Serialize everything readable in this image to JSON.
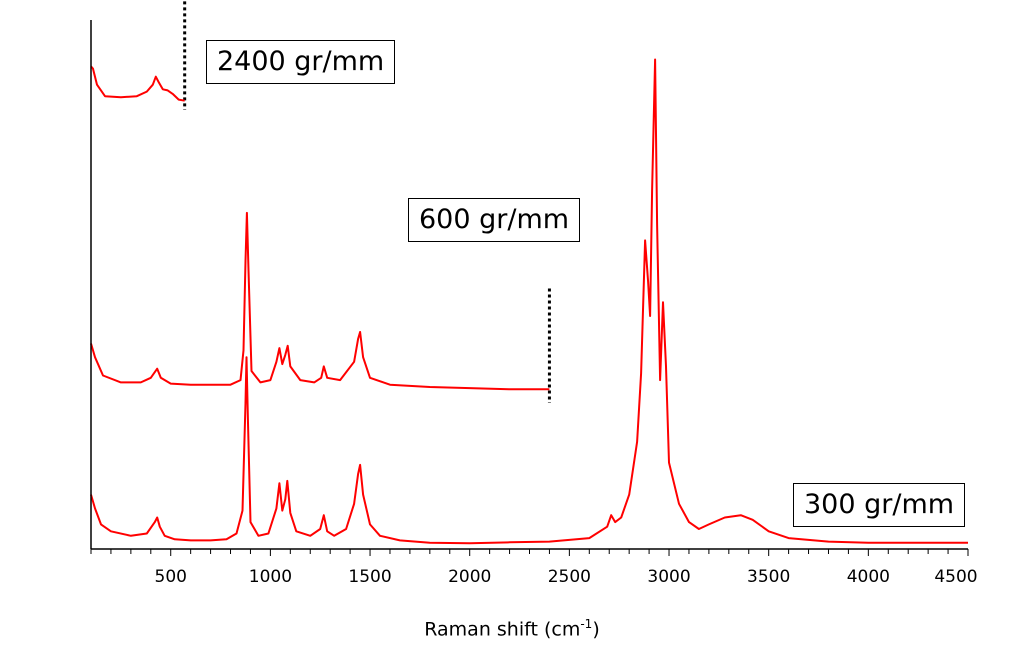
{
  "chart_data": {
    "type": "line",
    "title": "",
    "xlabel_main": "Raman shift (cm",
    "xlabel_sup": "-1",
    "xlabel_end": ")",
    "ylabel": "",
    "xlim": [
      100,
      4500
    ],
    "x_ticks": [
      500,
      1000,
      1500,
      2000,
      2500,
      3000,
      3500,
      4000,
      4500
    ],
    "y_axis_shown": true,
    "y_ticks_shown": false,
    "grid": false,
    "line_color": "#ff0000",
    "series": [
      {
        "name": "300 gr/mm",
        "range_end_marker": null,
        "baseline": 0,
        "points": [
          [
            100,
            0.22
          ],
          [
            120,
            0.16
          ],
          [
            150,
            0.09
          ],
          [
            200,
            0.06
          ],
          [
            300,
            0.04
          ],
          [
            380,
            0.05
          ],
          [
            420,
            0.1
          ],
          [
            432,
            0.12
          ],
          [
            445,
            0.08
          ],
          [
            470,
            0.04
          ],
          [
            520,
            0.025
          ],
          [
            600,
            0.02
          ],
          [
            700,
            0.02
          ],
          [
            780,
            0.025
          ],
          [
            830,
            0.05
          ],
          [
            860,
            0.15
          ],
          [
            875,
            0.62
          ],
          [
            880,
            0.82
          ],
          [
            887,
            0.55
          ],
          [
            900,
            0.1
          ],
          [
            940,
            0.04
          ],
          [
            990,
            0.05
          ],
          [
            1030,
            0.16
          ],
          [
            1045,
            0.27
          ],
          [
            1060,
            0.15
          ],
          [
            1075,
            0.2
          ],
          [
            1085,
            0.28
          ],
          [
            1100,
            0.14
          ],
          [
            1130,
            0.06
          ],
          [
            1200,
            0.04
          ],
          [
            1250,
            0.07
          ],
          [
            1268,
            0.13
          ],
          [
            1285,
            0.06
          ],
          [
            1320,
            0.04
          ],
          [
            1380,
            0.07
          ],
          [
            1420,
            0.18
          ],
          [
            1440,
            0.31
          ],
          [
            1450,
            0.35
          ],
          [
            1465,
            0.22
          ],
          [
            1500,
            0.09
          ],
          [
            1550,
            0.04
          ],
          [
            1650,
            0.02
          ],
          [
            1800,
            0.01
          ],
          [
            2000,
            0.008
          ],
          [
            2200,
            0.012
          ],
          [
            2400,
            0.015
          ],
          [
            2600,
            0.03
          ],
          [
            2690,
            0.08
          ],
          [
            2710,
            0.13
          ],
          [
            2730,
            0.1
          ],
          [
            2760,
            0.12
          ],
          [
            2800,
            0.22
          ],
          [
            2840,
            0.45
          ],
          [
            2860,
            0.75
          ],
          [
            2880,
            1.33
          ],
          [
            2895,
            1.15
          ],
          [
            2905,
            1.0
          ],
          [
            2915,
            1.55
          ],
          [
            2930,
            2.12
          ],
          [
            2940,
            1.4
          ],
          [
            2955,
            0.72
          ],
          [
            2970,
            1.06
          ],
          [
            2985,
            0.78
          ],
          [
            3000,
            0.36
          ],
          [
            3050,
            0.18
          ],
          [
            3100,
            0.1
          ],
          [
            3150,
            0.07
          ],
          [
            3200,
            0.09
          ],
          [
            3280,
            0.12
          ],
          [
            3360,
            0.13
          ],
          [
            3420,
            0.11
          ],
          [
            3500,
            0.06
          ],
          [
            3600,
            0.03
          ],
          [
            3800,
            0.015
          ],
          [
            4000,
            0.01
          ],
          [
            4500,
            0.01
          ]
        ]
      },
      {
        "name": "600 gr/mm",
        "range_end_marker": 2400,
        "baseline": 0.67,
        "points": [
          [
            100,
            0.88
          ],
          [
            120,
            0.82
          ],
          [
            160,
            0.74
          ],
          [
            250,
            0.71
          ],
          [
            350,
            0.71
          ],
          [
            400,
            0.73
          ],
          [
            432,
            0.77
          ],
          [
            450,
            0.73
          ],
          [
            500,
            0.705
          ],
          [
            600,
            0.7
          ],
          [
            800,
            0.7
          ],
          [
            850,
            0.72
          ],
          [
            865,
            0.85
          ],
          [
            875,
            1.24
          ],
          [
            882,
            1.45
          ],
          [
            890,
            1.2
          ],
          [
            905,
            0.76
          ],
          [
            950,
            0.71
          ],
          [
            1000,
            0.72
          ],
          [
            1030,
            0.8
          ],
          [
            1045,
            0.86
          ],
          [
            1060,
            0.79
          ],
          [
            1075,
            0.83
          ],
          [
            1087,
            0.87
          ],
          [
            1100,
            0.78
          ],
          [
            1150,
            0.72
          ],
          [
            1220,
            0.71
          ],
          [
            1255,
            0.73
          ],
          [
            1268,
            0.78
          ],
          [
            1285,
            0.73
          ],
          [
            1350,
            0.72
          ],
          [
            1420,
            0.8
          ],
          [
            1440,
            0.9
          ],
          [
            1450,
            0.93
          ],
          [
            1465,
            0.82
          ],
          [
            1500,
            0.73
          ],
          [
            1600,
            0.7
          ],
          [
            1800,
            0.69
          ],
          [
            2000,
            0.685
          ],
          [
            2200,
            0.68
          ],
          [
            2400,
            0.68
          ]
        ]
      },
      {
        "name": "2400 gr/mm",
        "range_end_marker": 570,
        "baseline": 1.95,
        "points": [
          [
            100,
            2.09
          ],
          [
            110,
            2.08
          ],
          [
            130,
            2.01
          ],
          [
            170,
            1.96
          ],
          [
            250,
            1.955
          ],
          [
            330,
            1.96
          ],
          [
            380,
            1.98
          ],
          [
            410,
            2.01
          ],
          [
            425,
            2.045
          ],
          [
            440,
            2.02
          ],
          [
            460,
            1.99
          ],
          [
            485,
            1.985
          ],
          [
            510,
            1.97
          ],
          [
            540,
            1.945
          ],
          [
            570,
            1.94
          ]
        ]
      }
    ]
  },
  "labels": {
    "s2400": "2400 gr/mm",
    "s600": "600 gr/mm",
    "s300": "300 gr/mm"
  }
}
